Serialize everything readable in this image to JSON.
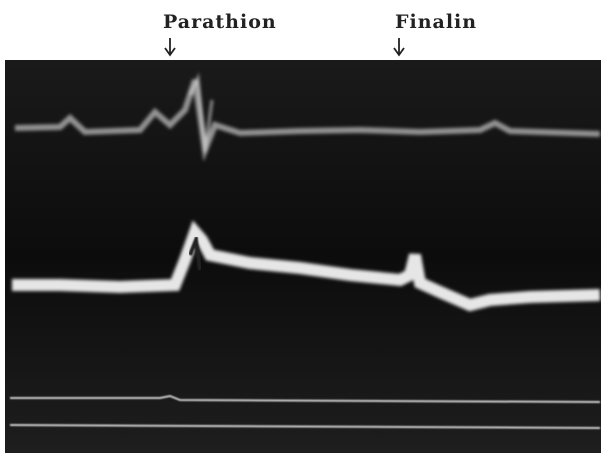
{
  "labels": {
    "left": "Parathion",
    "right": "Finalin"
  }
}
